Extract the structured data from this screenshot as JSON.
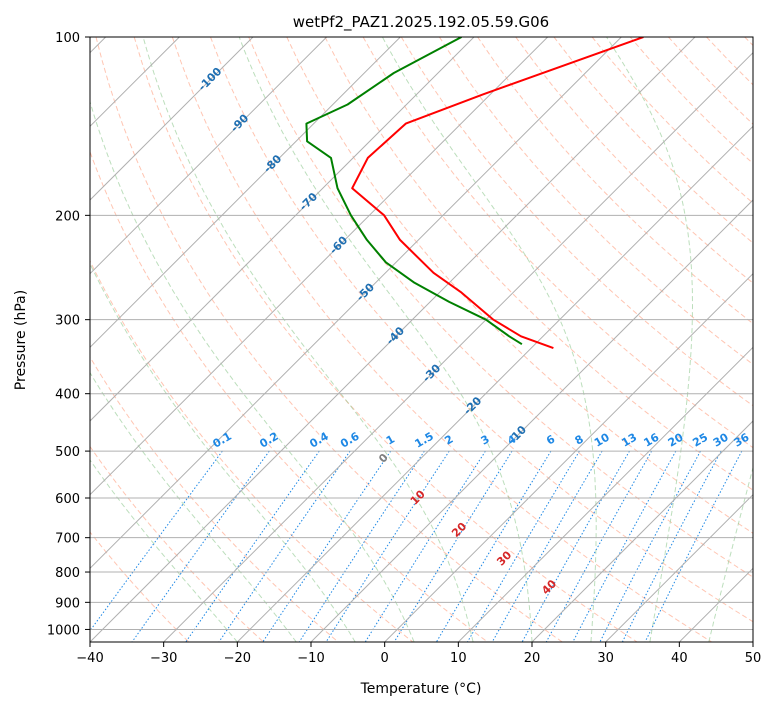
{
  "chart_data": {
    "type": "line",
    "title": "wetPf2_PAZ1.2025.192.05.59.G06",
    "xlabel": "Temperature (°C)",
    "ylabel": "Pressure (hPa)",
    "xlim": [
      -40,
      50
    ],
    "ylim": [
      1050,
      100
    ],
    "y_scale": "log",
    "grid": true,
    "x_ticks": [
      -40,
      -30,
      -20,
      -10,
      0,
      10,
      20,
      30,
      40,
      50
    ],
    "y_ticks": [
      100,
      200,
      300,
      400,
      500,
      600,
      700,
      800,
      900,
      1000
    ],
    "series": [
      {
        "color": "#ff0000",
        "pressure": [
          100,
          125,
          140,
          160,
          180,
          200,
          220,
          250,
          270,
          300,
          320,
          335
        ],
        "temperature": [
          -47,
          -61,
          -67.5,
          -68,
          -66,
          -58,
          -52.5,
          -43.5,
          -37,
          -29,
          -23,
          -17
        ]
      },
      {
        "color": "#008000",
        "pressure": [
          100,
          115,
          130,
          140,
          150,
          160,
          180,
          200,
          220,
          240,
          260,
          280,
          300,
          320,
          330
        ],
        "temperature": [
          -71.7,
          -76,
          -78,
          -81,
          -78.5,
          -73,
          -68,
          -62.5,
          -57,
          -51.4,
          -44.7,
          -37.4,
          -30,
          -24.6,
          -21.8
        ]
      }
    ],
    "dry_adiabat_labels": [
      "-100",
      "-90",
      "-80",
      "-70",
      "-60",
      "-50",
      "-40",
      "-30",
      "-20",
      "-10"
    ],
    "mixing_ratio_labels": [
      "0.1",
      "0.2",
      "0.4",
      "0.6",
      "1",
      "1.5",
      "2",
      "3",
      "4",
      "6",
      "8",
      "10",
      "13",
      "16",
      "20",
      "25",
      "30",
      "36"
    ],
    "moist_adiabat_labels": [
      "0",
      "10",
      "20",
      "30",
      "40"
    ],
    "colors": {
      "isotherm": "#b0b0b0",
      "dry_adiabat": "#ff9f7f",
      "moist_adiabat": "#90c890",
      "mixing_ratio": "#1e88e5",
      "label_blue": "#1f6fb2",
      "label_red": "#d62728",
      "label_grey": "#7f7f7f",
      "frame": "#000000"
    }
  }
}
